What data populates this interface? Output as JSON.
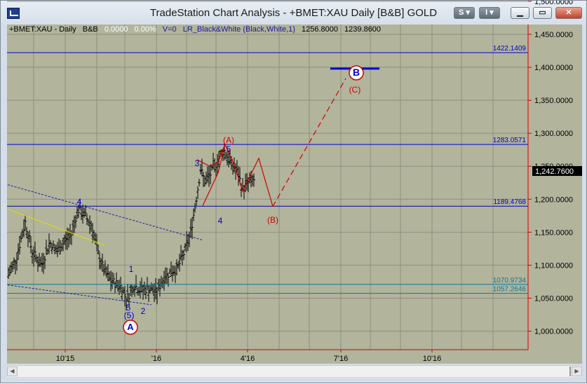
{
  "window": {
    "title": "TradeStation Chart Analysis - +BMET:XAU Daily [B&B] GOLD",
    "buttons": [
      "S",
      "I",
      "",
      "",
      ""
    ]
  },
  "info_line": {
    "symbol": "+BMET:XAU - Daily",
    "bb": "B&B",
    "change": "0.0000",
    "change_pct": "0.00%",
    "volume": "V=0",
    "indicator": "LR_Black&White (Black,White,1)",
    "high": "1256.8000",
    "low": "1239.8600"
  },
  "chart_data": {
    "type": "bar",
    "title": "+BMET:XAU - Daily",
    "ylabel": "",
    "xlabel": "",
    "ylim": [
      965,
      1540
    ],
    "price_ticks": [
      "1,500.0000",
      "1,450.0000",
      "1,400.0000",
      "1,350.0000",
      "1,300.0000",
      "1,250.0000",
      "1,200.0000",
      "1,150.0000",
      "1,100.0000",
      "1,050.0000",
      "1,000.0000"
    ],
    "date_ticks": [
      "10'15",
      "'16",
      "4'16",
      "7'16",
      "10'16"
    ],
    "last_price": "1,242.7600",
    "horizontal_levels": [
      {
        "value": 1422.1409,
        "label": "1422.1409",
        "color": "#0000c8"
      },
      {
        "value": 1283.0571,
        "label": "1283.0571",
        "color": "#0000c8"
      },
      {
        "value": 1189.4768,
        "label": "1189.4768",
        "color": "#0000c8"
      },
      {
        "value": 1070.9734,
        "label": "1070.9734",
        "color": "#0a7a9a"
      },
      {
        "value": 1057.2646,
        "label": "1057.2646",
        "color": "#0a7a9a"
      }
    ],
    "wave_labels": [
      {
        "text": "4",
        "color": "#0000c8"
      },
      {
        "text": "1",
        "color": "#0000c8"
      },
      {
        "text": "5",
        "color": "#0000c8"
      },
      {
        "text": "2",
        "color": "#0000c8"
      },
      {
        "text": "(5)",
        "color": "#0000c8"
      },
      {
        "text": "A",
        "color": "#0000c8"
      },
      {
        "text": "3",
        "color": "#0000c8"
      },
      {
        "text": "5",
        "color": "#0000c8"
      },
      {
        "text": "(A)",
        "color": "#d00000"
      },
      {
        "text": "4",
        "color": "#0000c8"
      },
      {
        "text": "(B)",
        "color": "#d00000"
      },
      {
        "text": "(C)",
        "color": "#d00000"
      },
      {
        "text": "B",
        "color": "#0000c8"
      }
    ],
    "colors": {
      "background": "#b2b49c",
      "grid": "#8f9080",
      "bars": "#000000",
      "level_blue": "#0000c8",
      "level_teal": "#0a7a9a",
      "projection": "#d00000",
      "axis_red": "#d00000"
    }
  }
}
